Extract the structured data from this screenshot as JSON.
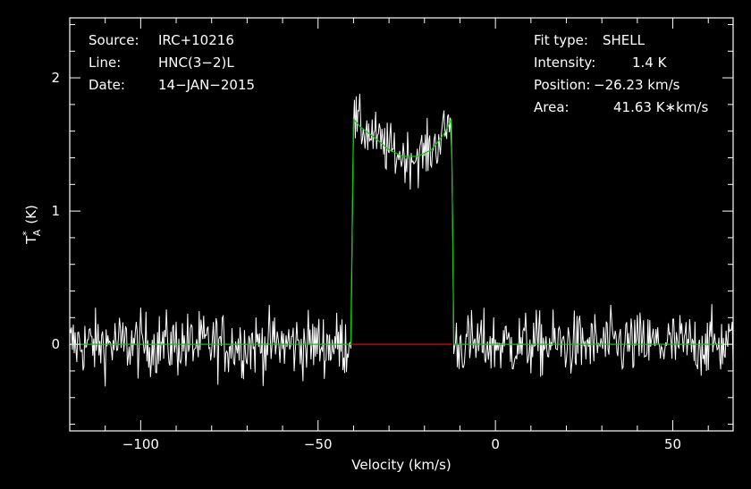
{
  "info_left": [
    {
      "key": "Source:",
      "value": "IRC+10216"
    },
    {
      "key": "Line:",
      "value": "HNC(3−2)L"
    },
    {
      "key": "Date:",
      "value": "14−JAN−2015"
    }
  ],
  "info_right": [
    {
      "key": "Fit type:",
      "value": "SHELL"
    },
    {
      "key": "Intensity:",
      "value": "1.4 K"
    },
    {
      "key": "Position:",
      "value": "−26.23 km/s"
    },
    {
      "key": "Area:",
      "value": "41.63 K∗km/s"
    }
  ],
  "chart_data": {
    "type": "line",
    "xlabel": "Velocity (km/s)",
    "ylabel_main": "T",
    "ylabel_sup": "*",
    "ylabel_sub": "A",
    "ylabel_unit": "(K)",
    "xlim": [
      -120,
      67
    ],
    "ylim": [
      -0.65,
      2.45
    ],
    "xticks": [
      -100,
      -50,
      0,
      50
    ],
    "xtick_labels": [
      "−100",
      "−50",
      "0",
      "50"
    ],
    "yticks": [
      0,
      1,
      2
    ],
    "ytick_labels": [
      "0",
      "1",
      "2"
    ],
    "grid": false,
    "colors": {
      "spectrum": "#ffffff",
      "fit": "#00cc00",
      "baseline": "#cc0000",
      "axes": "#ffffff",
      "background": "#000000"
    },
    "fit": {
      "name": "SHELL",
      "points": [
        [
          -120,
          0
        ],
        [
          -40.8,
          0
        ],
        [
          -40,
          1.69
        ],
        [
          -38,
          1.63
        ],
        [
          -34,
          1.55
        ],
        [
          -30,
          1.46
        ],
        [
          -26,
          1.41
        ],
        [
          -22,
          1.41
        ],
        [
          -18,
          1.46
        ],
        [
          -14.5,
          1.58
        ],
        [
          -12.4,
          1.69
        ],
        [
          -11.7,
          0
        ],
        [
          67,
          0
        ]
      ]
    },
    "baseline": {
      "x": [
        -40.8,
        -12.2
      ],
      "y": [
        0,
        0
      ]
    },
    "spectrum": {
      "step": 0.25,
      "noise_rms": 0.17,
      "line_noise_rms": 0.14,
      "emission_start": -40.8,
      "emission_end": -11.8
    }
  }
}
